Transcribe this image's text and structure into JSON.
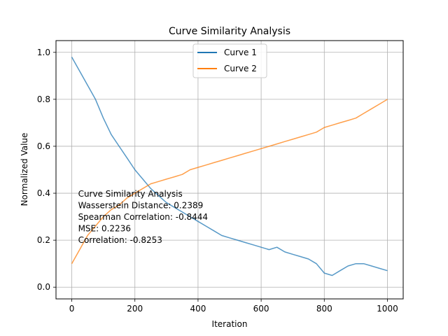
{
  "chart_data": {
    "type": "line",
    "title": "Curve Similarity Analysis",
    "xlabel": "Iteration",
    "ylabel": "Normalized Value",
    "xlim": [
      -50,
      1050
    ],
    "ylim": [
      -0.05,
      1.05
    ],
    "xticks": [
      0,
      200,
      400,
      600,
      800,
      1000
    ],
    "yticks": [
      0.0,
      0.2,
      0.4,
      0.6,
      0.8,
      1.0
    ],
    "xtick_labels": [
      "0",
      "200",
      "400",
      "600",
      "800",
      "1000"
    ],
    "ytick_labels": [
      "0.0",
      "0.2",
      "0.4",
      "0.6",
      "0.8",
      "1.0"
    ],
    "grid": true,
    "legend_position": "top-center",
    "series": [
      {
        "name": "Curve 1",
        "color": "#1f77b4",
        "x": [
          0,
          25,
          50,
          75,
          100,
          125,
          150,
          175,
          200,
          225,
          250,
          275,
          300,
          325,
          350,
          375,
          400,
          425,
          450,
          475,
          500,
          525,
          550,
          575,
          600,
          625,
          650,
          675,
          700,
          725,
          750,
          775,
          800,
          825,
          850,
          875,
          900,
          925,
          950,
          975,
          1000
        ],
        "values": [
          0.98,
          0.92,
          0.86,
          0.8,
          0.72,
          0.65,
          0.6,
          0.55,
          0.5,
          0.46,
          0.42,
          0.39,
          0.36,
          0.34,
          0.32,
          0.3,
          0.28,
          0.26,
          0.24,
          0.22,
          0.21,
          0.2,
          0.19,
          0.18,
          0.17,
          0.16,
          0.17,
          0.15,
          0.14,
          0.13,
          0.12,
          0.1,
          0.06,
          0.05,
          0.07,
          0.09,
          0.1,
          0.1,
          0.09,
          0.08,
          0.07
        ]
      },
      {
        "name": "Curve 2",
        "color": "#ff7f0e",
        "x": [
          0,
          25,
          50,
          75,
          100,
          125,
          150,
          175,
          200,
          225,
          250,
          275,
          300,
          325,
          350,
          375,
          400,
          425,
          450,
          475,
          500,
          525,
          550,
          575,
          600,
          625,
          650,
          675,
          700,
          725,
          750,
          775,
          800,
          825,
          850,
          875,
          900,
          925,
          950,
          975,
          1000
        ],
        "values": [
          0.1,
          0.16,
          0.22,
          0.26,
          0.3,
          0.33,
          0.35,
          0.38,
          0.4,
          0.42,
          0.44,
          0.45,
          0.46,
          0.47,
          0.48,
          0.5,
          0.51,
          0.52,
          0.53,
          0.54,
          0.55,
          0.56,
          0.57,
          0.58,
          0.59,
          0.6,
          0.61,
          0.62,
          0.63,
          0.64,
          0.65,
          0.66,
          0.68,
          0.69,
          0.7,
          0.71,
          0.72,
          0.74,
          0.76,
          0.78,
          0.8
        ]
      }
    ],
    "annotation": {
      "lines": [
        "Curve Similarity Analysis",
        "Wasserstein Distance: 0.2389",
        "Spearman Correlation: -0.8444",
        "MSE: 0.2236",
        "Correlation: -0.8253"
      ],
      "anchor": [
        20,
        0.385
      ]
    }
  }
}
